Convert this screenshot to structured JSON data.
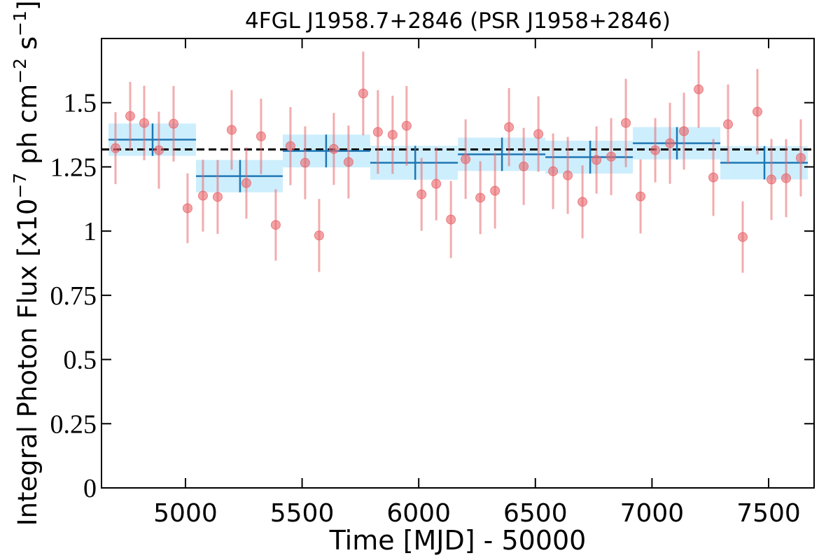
{
  "chart_data": {
    "type": "scatter",
    "title": "4FGL J1958.7+2846 (PSR J1958+2846)",
    "xlabel": "Time [MJD] - 50000",
    "ylabel_parts": [
      "Integral Photon Flux [x10",
      "−7",
      " ph cm",
      "−2",
      " s",
      "−1",
      "]"
    ],
    "xlim": [
      4640,
      7695
    ],
    "ylim": [
      0,
      1.75
    ],
    "xticks": [
      5000,
      5500,
      6000,
      6500,
      7000,
      7500
    ],
    "yticks": [
      0,
      0.25,
      0.5,
      0.75,
      1,
      1.25,
      1.5
    ],
    "points": {
      "color": "#e8676c",
      "x": [
        4700,
        4763,
        4823,
        4886,
        4949,
        5009,
        5075,
        5138,
        5198,
        5261,
        5324,
        5387,
        5450,
        5513,
        5573,
        5636,
        5699,
        5762,
        5825,
        5888,
        5948,
        6012,
        6075,
        6138,
        6201,
        6264,
        6327,
        6387,
        6450,
        6513,
        6576,
        6639,
        6702,
        6762,
        6825,
        6888,
        6951,
        7014,
        7077,
        7137,
        7200,
        7263,
        7326,
        7389,
        7452,
        7512,
        7575,
        7638
      ],
      "values": [
        1.323,
        1.448,
        1.421,
        1.315,
        1.418,
        1.089,
        1.138,
        1.133,
        1.394,
        1.187,
        1.369,
        1.024,
        1.331,
        1.266,
        0.983,
        1.32,
        1.269,
        1.536,
        1.386,
        1.375,
        1.41,
        1.143,
        1.184,
        1.045,
        1.28,
        1.13,
        1.157,
        1.405,
        1.252,
        1.378,
        1.233,
        1.217,
        1.114,
        1.277,
        1.29,
        1.421,
        1.135,
        1.315,
        1.342,
        1.389,
        1.552,
        1.209,
        1.416,
        0.977,
        1.465,
        1.201,
        1.206,
        1.285
      ],
      "errors": [
        0.14,
        0.133,
        0.145,
        0.15,
        0.147,
        0.136,
        0.14,
        0.144,
        0.155,
        0.139,
        0.147,
        0.139,
        0.152,
        0.142,
        0.142,
        0.14,
        0.142,
        0.163,
        0.163,
        0.152,
        0.155,
        0.142,
        0.142,
        0.15,
        0.155,
        0.142,
        0.147,
        0.152,
        0.15,
        0.147,
        0.147,
        0.15,
        0.142,
        0.131,
        0.15,
        0.172,
        0.144,
        0.125,
        0.158,
        0.15,
        0.15,
        0.15,
        0.155,
        0.139,
        0.166,
        0.158,
        0.152,
        0.15
      ]
    },
    "binned": {
      "color": "#1f77b4",
      "band_color": "#cdeefd",
      "x_start": [
        4670,
        5045,
        5417,
        5792,
        6168,
        6543,
        6918,
        7293
      ],
      "x_end": [
        5045,
        5417,
        5792,
        6168,
        6543,
        6918,
        7293,
        7668
      ],
      "x_center": [
        4859,
        5234,
        5603,
        5985,
        6357,
        6735,
        7107,
        7482
      ],
      "values": [
        1.356,
        1.214,
        1.312,
        1.266,
        1.299,
        1.288,
        1.342,
        1.266
      ],
      "errors": [
        0.063,
        0.063,
        0.064,
        0.066,
        0.065,
        0.064,
        0.063,
        0.065
      ]
    },
    "mean_flux": 1.318
  }
}
